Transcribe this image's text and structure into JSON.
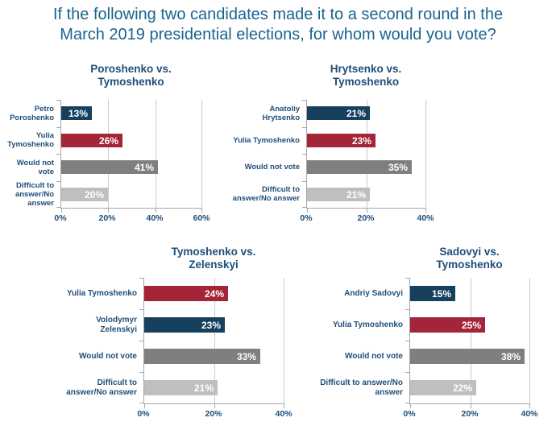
{
  "title": {
    "line1": "If the following two candidates made it to a second round in the",
    "line2": "March 2019 presidential elections, for whom would you vote?"
  },
  "colors": {
    "main_title": "#19648F",
    "heading": "#1F4E79",
    "navy": "#17405F",
    "red": "#A42438",
    "dark_gray": "#7F7F7F",
    "light_gray": "#BFBFBF",
    "gridline": "#C9CBCE",
    "axis": "#A3A7AB",
    "bar_label": "#FFFFFF"
  },
  "chart_data": [
    {
      "type": "bar",
      "orientation": "horizontal",
      "title": "Poroshenko vs. Tymoshenko",
      "title_lines": [
        "Poroshenko vs.",
        "Tymoshenko"
      ],
      "categories": [
        "Petro Poroshenko",
        "Yulia Tymoshenko",
        "Would not vote",
        "Difficult to answer/No answer"
      ],
      "category_label_lines": [
        [
          "Petro",
          "Poroshenko"
        ],
        [
          "Yulia",
          "Tymoshenko"
        ],
        [
          "Would not",
          "vote"
        ],
        [
          "Difficult to",
          "answer/No",
          "answer"
        ]
      ],
      "values": [
        13,
        26,
        41,
        20
      ],
      "labels": [
        "13%",
        "26%",
        "41%",
        "20%"
      ],
      "bar_colors": [
        "navy",
        "red",
        "dark_gray",
        "light_gray"
      ],
      "xlim": [
        0,
        60
      ],
      "x_ticks": [
        "0%",
        "20%",
        "40%",
        "60%"
      ],
      "grid": true,
      "legend": "none"
    },
    {
      "type": "bar",
      "orientation": "horizontal",
      "title": "Hrytsenko vs. Tymoshenko",
      "title_lines": [
        "Hrytsenko vs.",
        "Tymoshenko"
      ],
      "categories": [
        "Anatoliy Hrytsenko",
        "Yulia Tymoshenko",
        "Would not vote",
        "Difficult to answer/No answer"
      ],
      "category_label_lines": [
        [
          "Anatoliy",
          "Hrytsenko"
        ],
        [
          "Yulia Tymoshenko"
        ],
        [
          "Would not vote"
        ],
        [
          "Difficult to",
          "answer/No answer"
        ]
      ],
      "values": [
        21,
        23,
        35,
        21
      ],
      "labels": [
        "21%",
        "23%",
        "35%",
        "21%"
      ],
      "bar_colors": [
        "navy",
        "red",
        "dark_gray",
        "light_gray"
      ],
      "xlim": [
        0,
        40
      ],
      "x_ticks": [
        "0%",
        "20%",
        "40%"
      ],
      "grid": true,
      "legend": "none"
    },
    {
      "type": "bar",
      "orientation": "horizontal",
      "title": "Tymoshenko vs. Zelenskyi",
      "title_lines": [
        "Tymoshenko vs.",
        "Zelenskyi"
      ],
      "categories": [
        "Yulia Tymoshenko",
        "Volodymyr Zelenskyi",
        "Would not vote",
        "Difficult to answer/No answer"
      ],
      "category_label_lines": [
        [
          "Yulia Tymoshenko"
        ],
        [
          "Volodymyr",
          "Zelenskyi"
        ],
        [
          "Would not vote"
        ],
        [
          "Difficult to",
          "answer/No answer"
        ]
      ],
      "values": [
        24,
        23,
        33,
        21
      ],
      "labels": [
        "24%",
        "23%",
        "33%",
        "21%"
      ],
      "bar_colors": [
        "red",
        "navy",
        "dark_gray",
        "light_gray"
      ],
      "xlim": [
        0,
        40
      ],
      "x_ticks": [
        "0%",
        "20%",
        "40%"
      ],
      "grid": true,
      "legend": "none"
    },
    {
      "type": "bar",
      "orientation": "horizontal",
      "title": "Sadovyi vs. Tymoshenko",
      "title_lines": [
        "Sadovyi vs.",
        "Tymoshenko"
      ],
      "categories": [
        "Andriy Sadovyi",
        "Yulia Tymoshenko",
        "Would not vote",
        "Difficult to answer/No answer"
      ],
      "category_label_lines": [
        [
          "Andriy Sadovyi"
        ],
        [
          "Yulia Tymoshenko"
        ],
        [
          "Would not vote"
        ],
        [
          "Difficult to answer/No",
          "answer"
        ]
      ],
      "values": [
        15,
        25,
        38,
        22
      ],
      "labels": [
        "15%",
        "25%",
        "38%",
        "22%"
      ],
      "bar_colors": [
        "navy",
        "red",
        "dark_gray",
        "light_gray"
      ],
      "xlim": [
        0,
        40
      ],
      "x_ticks": [
        "0%",
        "20%",
        "40%"
      ],
      "grid": true,
      "legend": "none"
    }
  ]
}
